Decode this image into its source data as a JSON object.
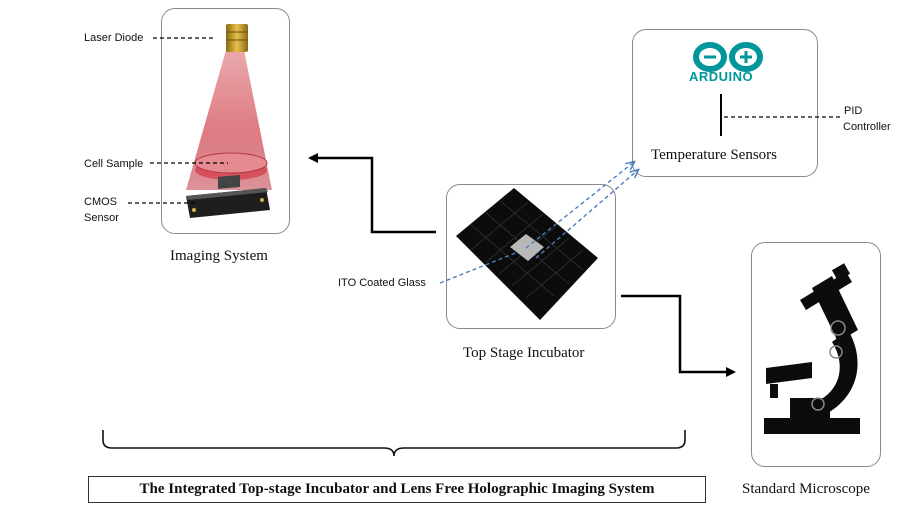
{
  "imaging": {
    "title": "Imaging System",
    "laser_label": "Laser Diode",
    "cell_label": "Cell Sample",
    "cmos_label_1": "CMOS",
    "cmos_label_2": "Sensor"
  },
  "incubator": {
    "title": "Top Stage Incubator",
    "ito_label": "ITO Coated Glass"
  },
  "sensors": {
    "title": "Temperature Sensors",
    "arduino_text": "ARDUINO",
    "pid_label_1": "PID",
    "pid_label_2": "Controller"
  },
  "microscope": {
    "title": "Standard Microscope"
  },
  "system_title": "The Integrated Top-stage Incubator and Lens Free Holographic Imaging System"
}
